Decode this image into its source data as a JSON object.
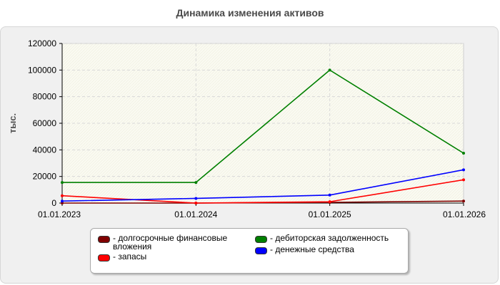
{
  "chart_data": {
    "type": "line",
    "title": "Динамика изменения активов",
    "ylabel": "тыс.",
    "xlabel": "",
    "categories": [
      "01.01.2023",
      "01.01.2024",
      "01.01.2025",
      "01.01.2026"
    ],
    "ylim": [
      0,
      120000
    ],
    "yticks": [
      0,
      20000,
      40000,
      60000,
      80000,
      100000,
      120000
    ],
    "grid": true,
    "legend_position": "bottom",
    "series": [
      {
        "name": "долгосрочные финансовые вложения",
        "color": "#800000",
        "values": [
          0,
          0,
          500,
          1500
        ]
      },
      {
        "name": "дебиторская задолженность",
        "color": "#008000",
        "values": [
          15500,
          15500,
          100000,
          37500
        ]
      },
      {
        "name": "запасы",
        "color": "#ff0000",
        "values": [
          5500,
          0,
          1000,
          17500
        ]
      },
      {
        "name": "денежные средства",
        "color": "#0000ff",
        "values": [
          1500,
          3500,
          6000,
          25000
        ]
      }
    ]
  }
}
